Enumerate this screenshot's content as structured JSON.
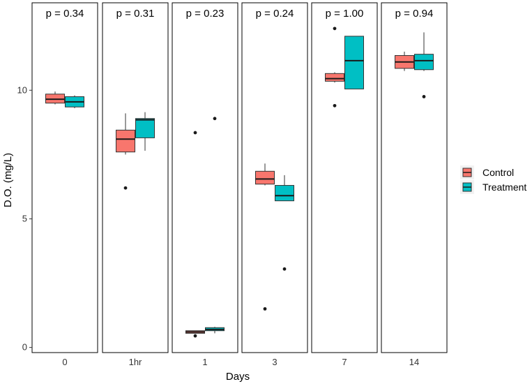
{
  "chart_data": {
    "type": "boxplot",
    "xlabel": "Days",
    "ylabel": "D.O. (mg/L)",
    "ylim": [
      -0.2,
      13.4
    ],
    "yticks": [
      0,
      5,
      10
    ],
    "legend": {
      "position": "right",
      "entries": [
        {
          "name": "Control",
          "color": "#F8766D"
        },
        {
          "name": "Treatment",
          "color": "#00BFC4"
        }
      ]
    },
    "panels": [
      {
        "label": "0",
        "p_label": "p = 0.34",
        "control": {
          "whisker_low": 9.45,
          "q1": 9.5,
          "median": 9.65,
          "q3": 9.85,
          "whisker_high": 9.95,
          "outliers": []
        },
        "treatment": {
          "whisker_low": 9.3,
          "q1": 9.35,
          "median": 9.55,
          "q3": 9.75,
          "whisker_high": 9.8,
          "outliers": []
        }
      },
      {
        "label": "1hr",
        "p_label": "p = 0.31",
        "control": {
          "whisker_low": 7.5,
          "q1": 7.6,
          "median": 8.1,
          "q3": 8.45,
          "whisker_high": 9.1,
          "outliers": [
            6.2
          ]
        },
        "treatment": {
          "whisker_low": 7.65,
          "q1": 8.15,
          "median": 8.85,
          "q3": 8.9,
          "whisker_high": 9.15,
          "outliers": []
        }
      },
      {
        "label": "1",
        "p_label": "p = 0.23",
        "control": {
          "whisker_low": 0.55,
          "q1": 0.55,
          "median": 0.6,
          "q3": 0.65,
          "whisker_high": 0.65,
          "outliers": [
            0.45,
            8.35
          ]
        },
        "treatment": {
          "whisker_low": 0.55,
          "q1": 0.65,
          "median": 0.7,
          "q3": 0.77,
          "whisker_high": 0.8,
          "outliers": [
            8.9
          ]
        }
      },
      {
        "label": "3",
        "p_label": "p = 0.24",
        "control": {
          "whisker_low": 6.3,
          "q1": 6.35,
          "median": 6.55,
          "q3": 6.85,
          "whisker_high": 7.15,
          "outliers": [
            1.5
          ]
        },
        "treatment": {
          "whisker_low": 5.7,
          "q1": 5.7,
          "median": 5.9,
          "q3": 6.3,
          "whisker_high": 6.7,
          "outliers": [
            3.05
          ]
        }
      },
      {
        "label": "7",
        "p_label": "p = 1.00",
        "control": {
          "whisker_low": 10.3,
          "q1": 10.35,
          "median": 10.45,
          "q3": 10.65,
          "whisker_high": 10.7,
          "outliers": [
            12.4,
            9.4
          ]
        },
        "treatment": {
          "whisker_low": 10.05,
          "q1": 10.05,
          "median": 11.15,
          "q3": 12.1,
          "whisker_high": 12.1,
          "outliers": []
        }
      },
      {
        "label": "14",
        "p_label": "p = 0.94",
        "control": {
          "whisker_low": 10.75,
          "q1": 10.85,
          "median": 11.1,
          "q3": 11.35,
          "whisker_high": 11.5,
          "outliers": []
        },
        "treatment": {
          "whisker_low": 10.75,
          "q1": 10.8,
          "median": 11.15,
          "q3": 11.4,
          "whisker_high": 12.25,
          "outliers": [
            9.75
          ]
        }
      }
    ]
  }
}
